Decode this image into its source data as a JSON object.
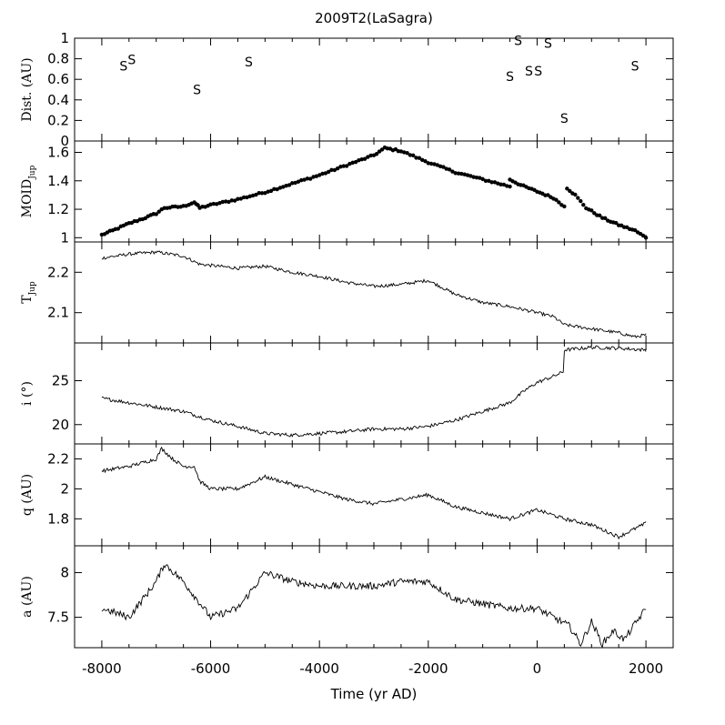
{
  "title": "2009T2(LaSagra)",
  "xlabel": "Time (yr AD)",
  "colors": {
    "axis": "#000000",
    "line": "#000000",
    "background": "#ffffff"
  },
  "chart_data": {
    "type": "line",
    "grid": false,
    "x_ticks": [
      -8000,
      -6000,
      -4000,
      -2000,
      0,
      2000
    ],
    "xlim": [
      -8500,
      2500
    ],
    "panels": [
      {
        "id": "dist",
        "ylabel": "Dist. (AU)",
        "ylim": [
          0,
          1
        ],
        "y_ticks": [
          0,
          0.2,
          0.4,
          0.6,
          0.8,
          1
        ],
        "y_tick_labels": [
          "0",
          "0.2",
          "0.4",
          "0.6",
          "0.8",
          "1"
        ],
        "style": "markers",
        "marker": "S",
        "points": [
          [
            -7600,
            0.73
          ],
          [
            -7450,
            0.79
          ],
          [
            -6250,
            0.5
          ],
          [
            -5300,
            0.77
          ],
          [
            -500,
            0.63
          ],
          [
            -350,
            0.98
          ],
          [
            -150,
            0.68
          ],
          [
            20,
            0.68
          ],
          [
            200,
            0.95
          ],
          [
            500,
            0.22
          ],
          [
            1800,
            0.73
          ]
        ]
      },
      {
        "id": "moid",
        "ylabel": "MOID",
        "ylabel_sub": "Jup",
        "ylim": [
          0.97,
          1.68
        ],
        "y_ticks": [
          1,
          1.2,
          1.4,
          1.6
        ],
        "y_tick_labels": [
          "1",
          "1.2",
          "1.4",
          "1.6"
        ],
        "style": "dots",
        "segments": [
          [
            [
              -8000,
              1.02
            ],
            [
              -7800,
              1.05
            ],
            [
              -7500,
              1.1
            ],
            [
              -7200,
              1.14
            ],
            [
              -7000,
              1.17
            ],
            [
              -6850,
              1.21
            ],
            [
              -6500,
              1.22
            ],
            [
              -6300,
              1.25
            ],
            [
              -6200,
              1.21
            ],
            [
              -6000,
              1.23
            ],
            [
              -5500,
              1.27
            ],
            [
              -5000,
              1.32
            ],
            [
              -4500,
              1.38
            ],
            [
              -4000,
              1.44
            ],
            [
              -3500,
              1.51
            ],
            [
              -3000,
              1.58
            ],
            [
              -2800,
              1.63
            ],
            [
              -2500,
              1.61
            ],
            [
              -2000,
              1.53
            ],
            [
              -1500,
              1.46
            ],
            [
              -1000,
              1.41
            ],
            [
              -500,
              1.36
            ]
          ],
          [
            [
              -500,
              1.41
            ],
            [
              -300,
              1.37
            ],
            [
              -100,
              1.34
            ],
            [
              100,
              1.31
            ],
            [
              300,
              1.28
            ],
            [
              500,
              1.22
            ]
          ],
          [
            [
              550,
              1.35
            ],
            [
              700,
              1.3
            ],
            [
              900,
              1.21
            ],
            [
              1200,
              1.14
            ],
            [
              1500,
              1.09
            ],
            [
              1800,
              1.05
            ],
            [
              2000,
              1.0
            ]
          ]
        ]
      },
      {
        "id": "tjup",
        "ylabel": "T",
        "ylabel_sub": "Jup",
        "ylim": [
          2.025,
          2.275
        ],
        "y_ticks": [
          2.1,
          2.2
        ],
        "y_tick_labels": [
          "2.1",
          "2.2"
        ],
        "style": "line",
        "noise": 0.004,
        "points": [
          [
            -8000,
            2.235
          ],
          [
            -7500,
            2.245
          ],
          [
            -7000,
            2.25
          ],
          [
            -6500,
            2.24
          ],
          [
            -6200,
            2.22
          ],
          [
            -5500,
            2.21
          ],
          [
            -5000,
            2.215
          ],
          [
            -4500,
            2.2
          ],
          [
            -4000,
            2.19
          ],
          [
            -3500,
            2.175
          ],
          [
            -3000,
            2.165
          ],
          [
            -2500,
            2.17
          ],
          [
            -2000,
            2.18
          ],
          [
            -1500,
            2.145
          ],
          [
            -1000,
            2.125
          ],
          [
            -500,
            2.115
          ],
          [
            0,
            2.1
          ],
          [
            300,
            2.09
          ],
          [
            500,
            2.07
          ],
          [
            1000,
            2.06
          ],
          [
            1500,
            2.05
          ],
          [
            1800,
            2.04
          ],
          [
            2000,
            2.045
          ]
        ]
      },
      {
        "id": "i",
        "ylabel": "i (°)",
        "ylim": [
          17.8,
          29.3
        ],
        "y_ticks": [
          20,
          25
        ],
        "y_tick_labels": [
          "20",
          "25"
        ],
        "style": "line",
        "noise": 0.2,
        "points": [
          [
            -8000,
            23.0
          ],
          [
            -7500,
            22.5
          ],
          [
            -7000,
            22.0
          ],
          [
            -6500,
            21.5
          ],
          [
            -6000,
            20.5
          ],
          [
            -5500,
            19.8
          ],
          [
            -5000,
            19.0
          ],
          [
            -4500,
            18.8
          ],
          [
            -4000,
            19.0
          ],
          [
            -3500,
            19.2
          ],
          [
            -3000,
            19.5
          ],
          [
            -2500,
            19.5
          ],
          [
            -2000,
            19.8
          ],
          [
            -1500,
            20.5
          ],
          [
            -1000,
            21.5
          ],
          [
            -500,
            22.5
          ],
          [
            -200,
            24.0
          ],
          [
            0,
            24.8
          ],
          [
            300,
            25.5
          ],
          [
            480,
            26.0
          ],
          [
            500,
            28.5
          ],
          [
            1000,
            28.8
          ],
          [
            1500,
            28.7
          ],
          [
            2000,
            28.5
          ]
        ]
      },
      {
        "id": "q",
        "ylabel": "q (AU)",
        "ylim": [
          1.62,
          2.3
        ],
        "y_ticks": [
          1.8,
          2,
          2.2
        ],
        "y_tick_labels": [
          "1.8",
          "2",
          "2.2"
        ],
        "style": "line",
        "noise": 0.012,
        "points": [
          [
            -8000,
            2.12
          ],
          [
            -7500,
            2.15
          ],
          [
            -7000,
            2.2
          ],
          [
            -6900,
            2.27
          ],
          [
            -6700,
            2.2
          ],
          [
            -6500,
            2.15
          ],
          [
            -6300,
            2.15
          ],
          [
            -6200,
            2.05
          ],
          [
            -6000,
            2.0
          ],
          [
            -5500,
            2.0
          ],
          [
            -5000,
            2.08
          ],
          [
            -4500,
            2.03
          ],
          [
            -4000,
            1.98
          ],
          [
            -3500,
            1.93
          ],
          [
            -3000,
            1.9
          ],
          [
            -2500,
            1.93
          ],
          [
            -2000,
            1.96
          ],
          [
            -1500,
            1.88
          ],
          [
            -1000,
            1.84
          ],
          [
            -500,
            1.8
          ],
          [
            0,
            1.86
          ],
          [
            500,
            1.8
          ],
          [
            1000,
            1.76
          ],
          [
            1500,
            1.68
          ],
          [
            2000,
            1.77
          ]
        ]
      },
      {
        "id": "a",
        "ylabel": "a (AU)",
        "ylim": [
          7.16,
          8.3
        ],
        "y_ticks": [
          7.5,
          8
        ],
        "y_tick_labels": [
          "7.5",
          "8"
        ],
        "style": "line",
        "noise": 0.04,
        "points": [
          [
            -8000,
            7.6
          ],
          [
            -7500,
            7.5
          ],
          [
            -7000,
            7.9
          ],
          [
            -6850,
            8.1
          ],
          [
            -6500,
            7.9
          ],
          [
            -6000,
            7.5
          ],
          [
            -5500,
            7.6
          ],
          [
            -5000,
            8.0
          ],
          [
            -4500,
            7.9
          ],
          [
            -4000,
            7.85
          ],
          [
            -3500,
            7.85
          ],
          [
            -3000,
            7.85
          ],
          [
            -2500,
            7.9
          ],
          [
            -2000,
            7.9
          ],
          [
            -1500,
            7.7
          ],
          [
            -1000,
            7.65
          ],
          [
            -500,
            7.6
          ],
          [
            0,
            7.6
          ],
          [
            300,
            7.5
          ],
          [
            600,
            7.4
          ],
          [
            800,
            7.2
          ],
          [
            1000,
            7.45
          ],
          [
            1200,
            7.2
          ],
          [
            1400,
            7.35
          ],
          [
            1600,
            7.25
          ],
          [
            2000,
            7.6
          ]
        ]
      }
    ]
  }
}
